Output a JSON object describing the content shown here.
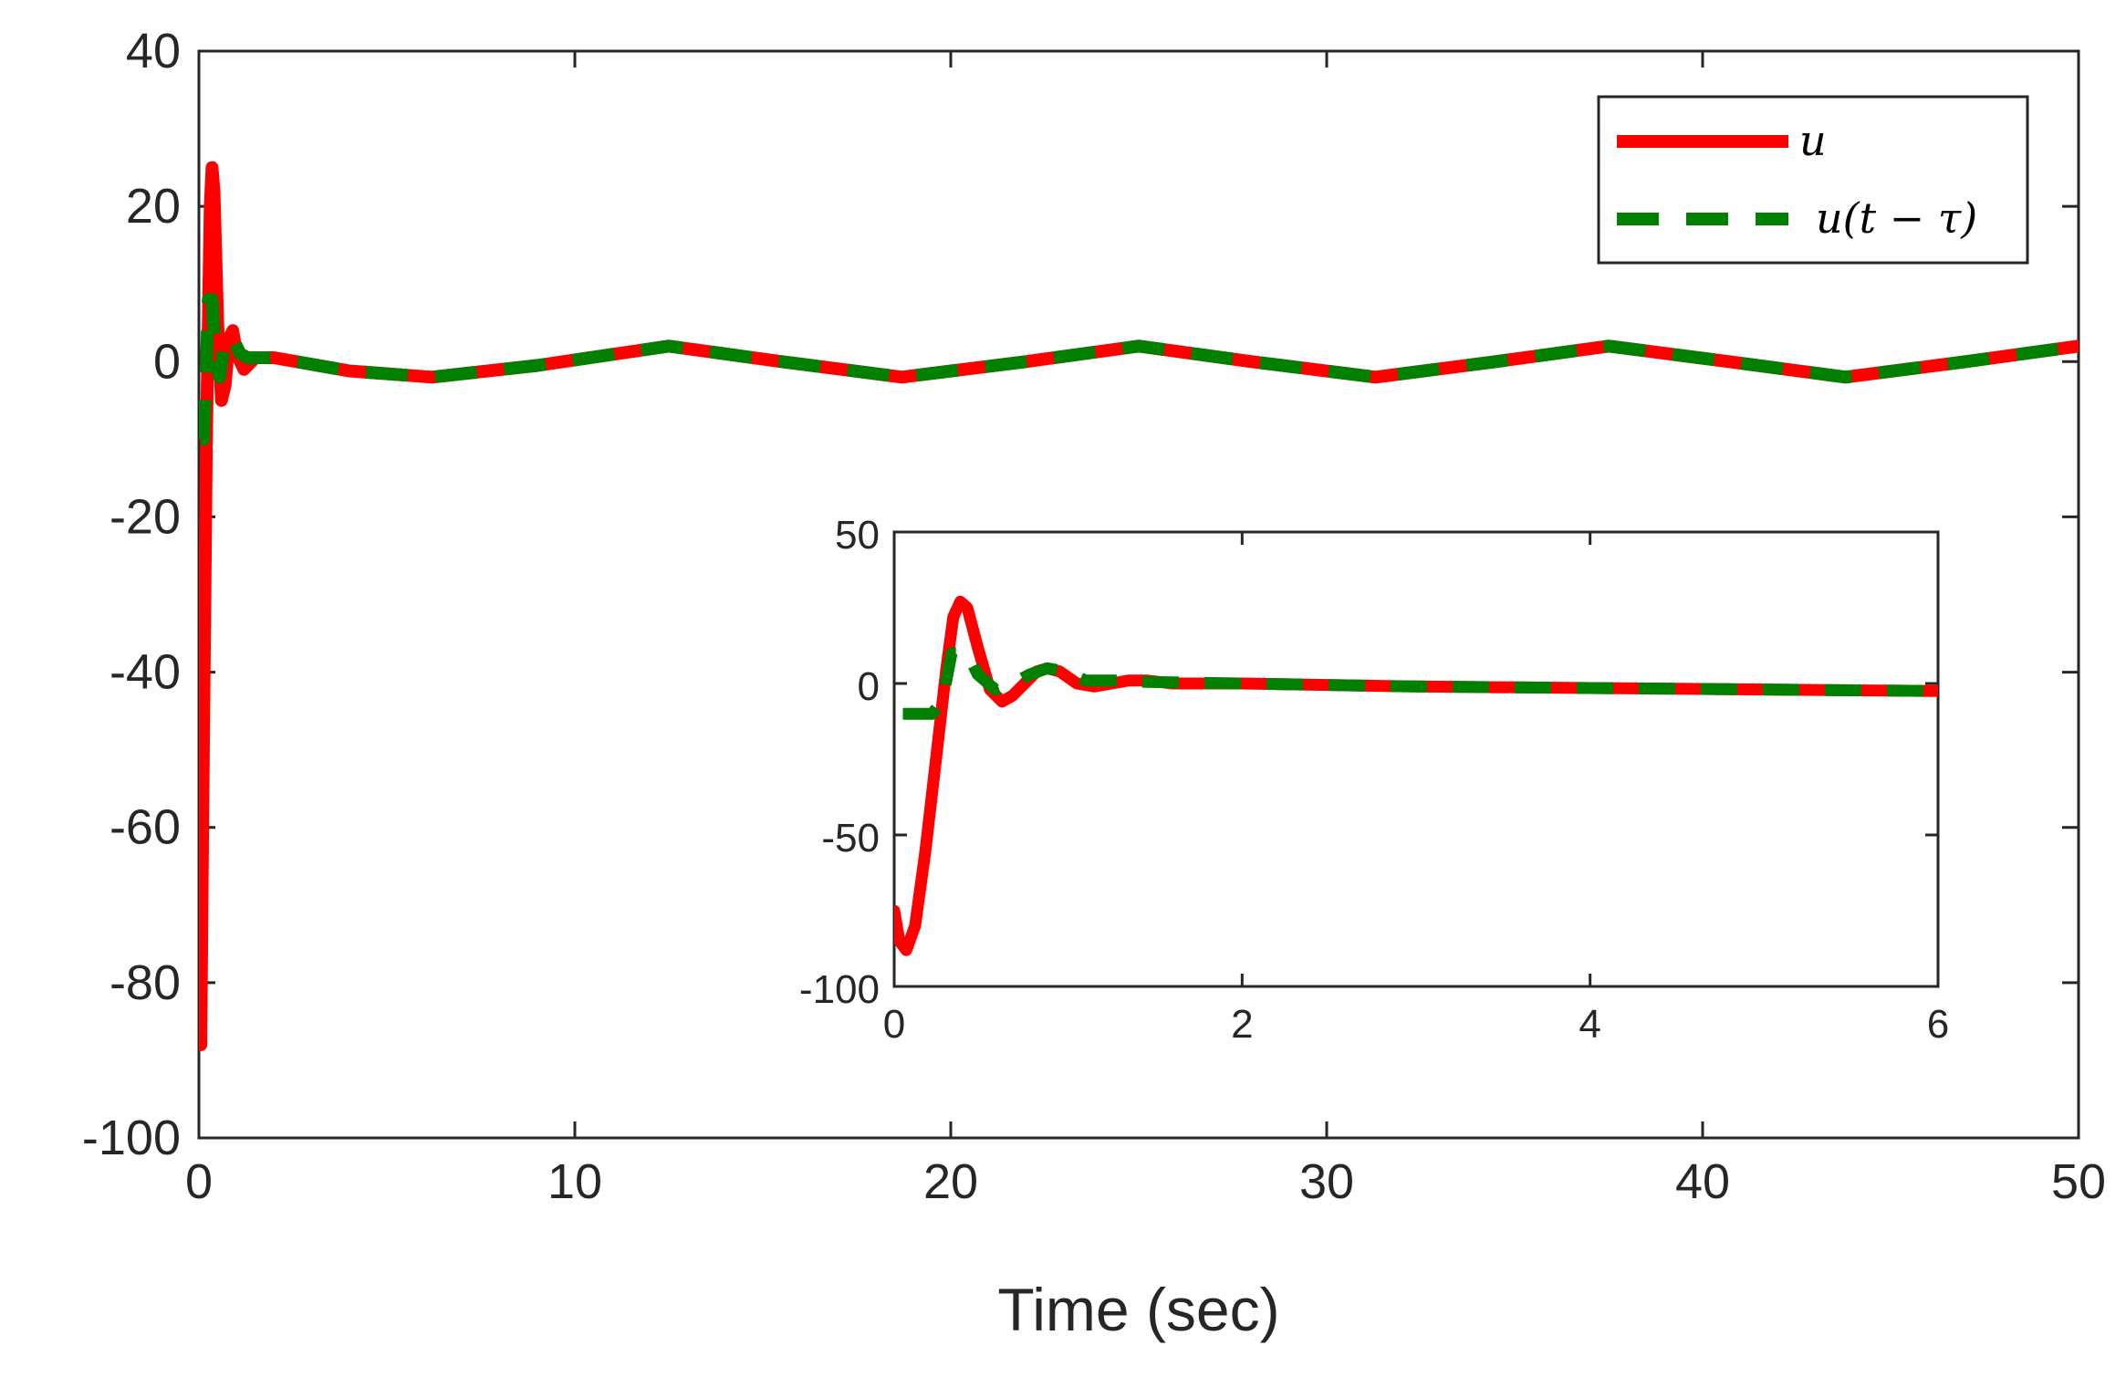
{
  "chart_data": [
    {
      "type": "line",
      "title": "",
      "xlabel": "Time (sec)",
      "ylabel": "",
      "xlim": [
        0,
        50
      ],
      "ylim": [
        -100,
        40
      ],
      "xticks": [
        "0",
        "10",
        "20",
        "30",
        "40",
        "50"
      ],
      "yticks": [
        "-100",
        "-80",
        "-60",
        "-40",
        "-20",
        "0",
        "20",
        "40"
      ],
      "grid": false,
      "legend_position": "top-right",
      "series": [
        {
          "name": "u",
          "style": "solid",
          "color": "#ff0000",
          "points": [
            [
              0,
              -75
            ],
            [
              0.05,
              -88
            ],
            [
              0.1,
              -60
            ],
            [
              0.2,
              -10
            ],
            [
              0.3,
              20
            ],
            [
              0.35,
              25
            ],
            [
              0.4,
              22
            ],
            [
              0.5,
              5
            ],
            [
              0.6,
              -5
            ],
            [
              0.7,
              -3
            ],
            [
              0.8,
              3
            ],
            [
              0.9,
              4
            ],
            [
              1.0,
              1
            ],
            [
              1.2,
              -1
            ],
            [
              1.5,
              0.5
            ],
            [
              2,
              0.5
            ],
            [
              4,
              -1.2
            ],
            [
              6.2,
              -2
            ],
            [
              9,
              -0.5
            ],
            [
              12.5,
              2
            ],
            [
              15.5,
              0
            ],
            [
              18.7,
              -2
            ],
            [
              22,
              0
            ],
            [
              25,
              2
            ],
            [
              28,
              0
            ],
            [
              31.3,
              -2
            ],
            [
              34.5,
              0
            ],
            [
              37.5,
              2
            ],
            [
              40.7,
              0
            ],
            [
              43.8,
              -2
            ],
            [
              47,
              0
            ],
            [
              50,
              2
            ]
          ]
        },
        {
          "name": "u(t − τ)",
          "label_latex": "u(t-\\tau)",
          "style": "dashed",
          "color": "#007f00",
          "points": [
            [
              0.05,
              -10
            ],
            [
              0.12,
              -10
            ],
            [
              0.2,
              0
            ],
            [
              0.25,
              8
            ],
            [
              0.35,
              8
            ],
            [
              0.45,
              0
            ],
            [
              0.55,
              -2
            ],
            [
              0.7,
              3
            ],
            [
              0.9,
              3
            ],
            [
              1.1,
              1
            ],
            [
              1.3,
              0.5
            ],
            [
              1.5,
              0.5
            ],
            [
              2,
              0.5
            ],
            [
              4,
              -1.2
            ],
            [
              6.2,
              -2
            ],
            [
              9,
              -0.5
            ],
            [
              12.5,
              2
            ],
            [
              15.5,
              0
            ],
            [
              18.7,
              -2
            ],
            [
              22,
              0
            ],
            [
              25,
              2
            ],
            [
              28,
              0
            ],
            [
              31.3,
              -2
            ],
            [
              34.5,
              0
            ],
            [
              37.5,
              2
            ],
            [
              40.7,
              0
            ],
            [
              43.8,
              -2
            ],
            [
              47,
              0
            ],
            [
              50,
              2
            ]
          ]
        }
      ]
    },
    {
      "type": "line",
      "title": "",
      "xlabel": "",
      "ylabel": "",
      "xlim": [
        0,
        6
      ],
      "ylim": [
        -100,
        50
      ],
      "xticks": [
        "0",
        "2",
        "4",
        "6"
      ],
      "yticks": [
        "-100",
        "-50",
        "0",
        "50"
      ],
      "grid": false,
      "series": [
        {
          "name": "u",
          "style": "solid",
          "color": "#ff0000",
          "points": [
            [
              0,
              -75
            ],
            [
              0.03,
              -85
            ],
            [
              0.07,
              -88
            ],
            [
              0.12,
              -80
            ],
            [
              0.18,
              -55
            ],
            [
              0.24,
              -25
            ],
            [
              0.3,
              5
            ],
            [
              0.34,
              22
            ],
            [
              0.38,
              27
            ],
            [
              0.42,
              25
            ],
            [
              0.48,
              12
            ],
            [
              0.55,
              -2
            ],
            [
              0.62,
              -6
            ],
            [
              0.68,
              -4
            ],
            [
              0.75,
              0
            ],
            [
              0.82,
              4
            ],
            [
              0.88,
              5
            ],
            [
              0.95,
              4
            ],
            [
              1.05,
              0
            ],
            [
              1.15,
              -1
            ],
            [
              1.25,
              0
            ],
            [
              1.35,
              1
            ],
            [
              1.45,
              1
            ],
            [
              1.6,
              0
            ],
            [
              2,
              0
            ],
            [
              3,
              -1
            ],
            [
              4,
              -1.5
            ],
            [
              5,
              -2
            ],
            [
              6,
              -2.5
            ]
          ]
        },
        {
          "name": "u(t − τ)",
          "style": "dashed",
          "color": "#007f00",
          "points": [
            [
              0.05,
              -10
            ],
            [
              0.22,
              -10
            ],
            [
              0.28,
              -5
            ],
            [
              0.33,
              10
            ],
            [
              0.42,
              10
            ],
            [
              0.48,
              3
            ],
            [
              0.58,
              -2
            ],
            [
              0.68,
              0
            ],
            [
              0.78,
              3
            ],
            [
              0.88,
              5
            ],
            [
              0.98,
              4
            ],
            [
              1.1,
              1
            ],
            [
              1.3,
              1
            ],
            [
              1.45,
              0.5
            ],
            [
              2,
              0
            ],
            [
              3,
              -1
            ],
            [
              4,
              -1.5
            ],
            [
              5,
              -2
            ],
            [
              6,
              -2.5
            ]
          ]
        }
      ]
    }
  ],
  "legend": {
    "entries": [
      {
        "label": "u",
        "color": "#ff0000",
        "style": "solid"
      },
      {
        "label": "u(t − τ)",
        "color": "#007f00",
        "style": "dashed"
      }
    ]
  },
  "colors": {
    "u": "#ff0000",
    "u_delayed": "#007f00",
    "axes": "#262626"
  }
}
